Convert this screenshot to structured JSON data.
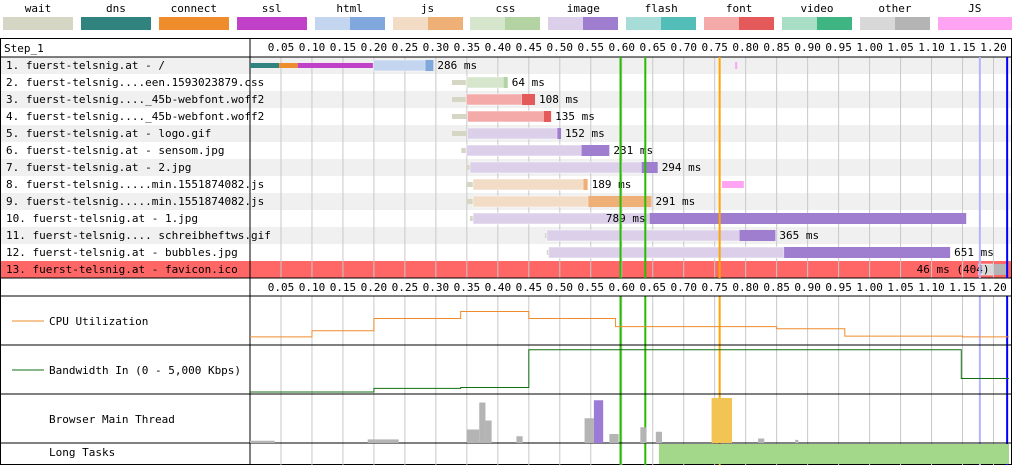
{
  "legend": [
    {
      "label": "wait",
      "color": "#d6d6c5",
      "color2": "#d6d6c5"
    },
    {
      "label": "dns",
      "color": "#30837f",
      "color2": "#30837f"
    },
    {
      "label": "connect",
      "color": "#ef8c2c",
      "color2": "#ef8c2c"
    },
    {
      "label": "ssl",
      "color": "#c041c8",
      "color2": "#c041c8"
    },
    {
      "label": "html",
      "color": "#c4d6ef",
      "color2": "#81a8dd"
    },
    {
      "label": "js",
      "color": "#f3dcc5",
      "color2": "#efb078"
    },
    {
      "label": "css",
      "color": "#d5e6cc",
      "color2": "#b3d4a2"
    },
    {
      "label": "image",
      "color": "#dccfe9",
      "color2": "#a07ecf"
    },
    {
      "label": "flash",
      "color": "#a8dcd9",
      "color2": "#53bdb7"
    },
    {
      "label": "font",
      "color": "#f3aaa9",
      "color2": "#e45a5a"
    },
    {
      "label": "video",
      "color": "#a8dec5",
      "color2": "#3fb583"
    },
    {
      "label": "other",
      "color": "#d8d8d8",
      "color2": "#b4b4b4"
    },
    {
      "label": "JS Execution",
      "color": "#ffa4f3",
      "color2": "#ffa4f3"
    }
  ],
  "chart_data": {
    "type": "waterfall",
    "step_label": "Step_1",
    "x_ticks": [
      "0.05",
      "0.10",
      "0.15",
      "0.20",
      "0.25",
      "0.30",
      "0.35",
      "0.40",
      "0.45",
      "0.50",
      "0.55",
      "0.60",
      "0.65",
      "0.70",
      "0.75",
      "0.80",
      "0.85",
      "0.90",
      "0.95",
      "1.00",
      "1.05",
      "1.10",
      "1.15",
      "1.20"
    ],
    "x_range_seconds": [
      0,
      1.225
    ],
    "markers": [
      {
        "time": 0.598,
        "color": "#28bc00"
      },
      {
        "time": 0.638,
        "color": "#28bc00"
      },
      {
        "time": 0.758,
        "color": "#ffa500"
      },
      {
        "time": 1.178,
        "color": "#b4b4ff"
      },
      {
        "time": 1.222,
        "color": "#0000ff"
      }
    ],
    "requests": [
      {
        "label": "1. fuerst-telsnig.at - /",
        "type": "html",
        "start": 0.0,
        "end": 0.296,
        "segments": [
          [
            "dns",
            0.0,
            0.047
          ],
          [
            "connect",
            0.047,
            0.077
          ],
          [
            "ssl",
            0.077,
            0.199
          ]
        ],
        "download_start": 0.283,
        "duration_label": "286 ms",
        "error": false
      },
      {
        "label": "2. fuerst-telsnig....een.1593023879.css",
        "type": "css",
        "start": 0.326,
        "end": 0.416,
        "wait_end": 0.349,
        "download_start": 0.409,
        "duration_label": "64 ms",
        "error": false
      },
      {
        "label": "3. fuerst-telsnig...._45b-webfont.woff2",
        "type": "font",
        "start": 0.326,
        "end": 0.46,
        "wait_end": 0.349,
        "download_start": 0.439,
        "duration_label": "108 ms",
        "error": false
      },
      {
        "label": "4. fuerst-telsnig...._45b-webfont.woff2",
        "type": "font",
        "start": 0.326,
        "end": 0.486,
        "wait_end": 0.351,
        "download_start": 0.474,
        "duration_label": "135 ms",
        "error": false
      },
      {
        "label": "5. fuerst-telsnig.at - logo.gif",
        "type": "image",
        "start": 0.326,
        "end": 0.502,
        "wait_end": 0.351,
        "download_start": 0.496,
        "duration_label": "152 ms",
        "error": false
      },
      {
        "label": "6. fuerst-telsnig.at - sensom.jpg",
        "type": "image",
        "start": 0.341,
        "end": 0.58,
        "wait_end": 0.349,
        "download_start": 0.535,
        "duration_label": "231 ms",
        "error": false
      },
      {
        "label": "7. fuerst-telsnig.at - 2.jpg",
        "type": "image",
        "start": 0.349,
        "end": 0.658,
        "wait_end": 0.355,
        "download_start": 0.632,
        "duration_label": "294 ms",
        "error": false
      },
      {
        "label": "8. fuerst-telsnig.....min.1551874082.js",
        "type": "js",
        "start": 0.349,
        "end": 0.545,
        "wait_end": 0.36,
        "download_start": 0.538,
        "duration_label": "189 ms",
        "error": false
      },
      {
        "label": "9. fuerst-telsnig.....min.1551874082.js",
        "type": "js",
        "start": 0.349,
        "end": 0.648,
        "wait_end": 0.36,
        "download_start": 0.546,
        "duration_label": "291 ms",
        "error": false
      },
      {
        "label": "10. fuerst-telsnig.at - 1.jpg",
        "type": "image",
        "start": 0.355,
        "end": 1.156,
        "wait_end": 0.36,
        "download_start": 0.645,
        "duration_label": "789 ms",
        "error": false
      },
      {
        "label": "11. fuerst-telsnig.... schreibheftws.gif",
        "type": "image",
        "start": 0.476,
        "end": 0.848,
        "wait_end": 0.479,
        "download_start": 0.79,
        "duration_label": "365 ms",
        "error": false
      },
      {
        "label": "12. fuerst-telsnig.at - bubbles.jpg",
        "type": "image",
        "start": 0.479,
        "end": 1.13,
        "wait_end": 0.482,
        "download_start": 0.862,
        "duration_label": "651 ms",
        "error": false
      },
      {
        "label": "13. fuerst-telsnig.at - favicon.ico",
        "type": "other",
        "start": 1.176,
        "end": 1.222,
        "wait_end": 1.176,
        "download_start": 1.2,
        "duration_label": "46 ms (404)",
        "error": true
      }
    ],
    "js_execution_marks": [
      {
        "row": 0,
        "start": 0.783,
        "end": 0.786
      },
      {
        "row": 7,
        "start": 0.762,
        "end": 0.797
      }
    ],
    "cpu_label": "CPU Utilization",
    "cpu_utilization": [
      [
        0,
        0.1
      ],
      [
        0.1,
        0.1
      ],
      [
        0.1,
        0.25
      ],
      [
        0.2,
        0.25
      ],
      [
        0.2,
        0.55
      ],
      [
        0.34,
        0.55
      ],
      [
        0.34,
        0.72
      ],
      [
        0.45,
        0.72
      ],
      [
        0.45,
        0.55
      ],
      [
        0.59,
        0.55
      ],
      [
        0.59,
        0.35
      ],
      [
        0.85,
        0.35
      ],
      [
        0.85,
        0.3
      ],
      [
        0.96,
        0.3
      ],
      [
        0.96,
        0.12
      ],
      [
        1.15,
        0.12
      ],
      [
        1.15,
        0.1
      ],
      [
        1.225,
        0.1
      ]
    ],
    "bandwidth_label": "Bandwidth In (0 - 5,000 Kbps)",
    "bandwidth_kbps": [
      [
        0,
        0
      ],
      [
        0.2,
        0
      ],
      [
        0.2,
        400
      ],
      [
        0.34,
        400
      ],
      [
        0.34,
        500
      ],
      [
        0.45,
        500
      ],
      [
        0.45,
        4700
      ],
      [
        1.148,
        4700
      ],
      [
        1.148,
        1500
      ],
      [
        1.225,
        1500
      ]
    ],
    "main_thread_label": "Browser Main Thread",
    "main_thread_blocks": [
      {
        "start": 0.0,
        "end": 0.04,
        "level": 0.05,
        "color": "#b4b4b4"
      },
      {
        "start": 0.19,
        "end": 0.24,
        "level": 0.08,
        "color": "#b4b4b4"
      },
      {
        "start": 0.35,
        "end": 0.37,
        "level": 0.3,
        "color": "#b4b4b4"
      },
      {
        "start": 0.37,
        "end": 0.38,
        "level": 0.9,
        "color": "#b4b4b4"
      },
      {
        "start": 0.38,
        "end": 0.39,
        "level": 0.5,
        "color": "#b4b4b4"
      },
      {
        "start": 0.43,
        "end": 0.44,
        "level": 0.15,
        "color": "#b4b4b4"
      },
      {
        "start": 0.54,
        "end": 0.555,
        "level": 0.55,
        "color": "#b4b4b4"
      },
      {
        "start": 0.555,
        "end": 0.57,
        "level": 0.95,
        "color": "#9b7bd6"
      },
      {
        "start": 0.58,
        "end": 0.595,
        "level": 0.2,
        "color": "#b4b4b4"
      },
      {
        "start": 0.63,
        "end": 0.64,
        "level": 0.35,
        "color": "#b4b4b4"
      },
      {
        "start": 0.655,
        "end": 0.665,
        "level": 0.25,
        "color": "#b4b4b4"
      },
      {
        "start": 0.745,
        "end": 0.778,
        "level": 1.0,
        "color": "#f1c453"
      },
      {
        "start": 0.82,
        "end": 0.83,
        "level": 0.1,
        "color": "#b4b4b4"
      },
      {
        "start": 0.88,
        "end": 0.885,
        "level": 0.07,
        "color": "#b4b4b4"
      }
    ],
    "long_tasks_label": "Long Tasks",
    "long_tasks": [
      {
        "start": 0.66,
        "end": 1.225,
        "color": "#a3d78a"
      }
    ]
  }
}
